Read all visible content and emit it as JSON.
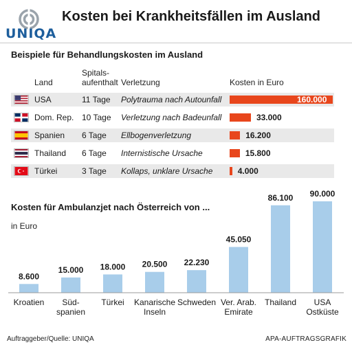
{
  "header": {
    "logo_text": "UNIQA",
    "title": "Kosten bei Krankheitsfällen im Ausland"
  },
  "colors": {
    "cost_bar": "#e8461c",
    "jet_bar": "#a8cdea",
    "row_shade": "#e9e9e9",
    "logo": "#1d5e9c"
  },
  "treatment": {
    "title": "Beispiele für Behandlungskosten im Ausland",
    "headers": {
      "country": "Land",
      "stay": "Spitals-\naufenthalt",
      "injury": "Verletzung",
      "cost": "Kosten in Euro"
    },
    "rows": [
      {
        "flag": "usa-flag",
        "country": "USA",
        "stay": "11 Tage",
        "injury": "Polytrauma nach Autounfall",
        "cost": 160000,
        "cost_label": "160.000"
      },
      {
        "flag": "dominican-republic-flag",
        "country": "Dom. Rep.",
        "stay": "10 Tage",
        "injury": "Verletzung nach Badeunfall",
        "cost": 33000,
        "cost_label": "33.000"
      },
      {
        "flag": "spain-flag",
        "country": "Spanien",
        "stay": "6 Tage",
        "injury": "Ellbogenverletzung",
        "cost": 16200,
        "cost_label": "16.200"
      },
      {
        "flag": "thailand-flag",
        "country": "Thailand",
        "stay": "6 Tage",
        "injury": "Internistische Ursache",
        "cost": 15800,
        "cost_label": "15.800"
      },
      {
        "flag": "turkey-flag",
        "country": "Türkei",
        "stay": "3 Tage",
        "injury": "Kollaps, unklare Ursache",
        "cost": 4000,
        "cost_label": "4.000"
      }
    ]
  },
  "chart_data": {
    "type": "bar",
    "title": "Kosten für Ambulanzjet nach Österreich von ...",
    "ylabel": "in Euro",
    "categories": [
      "Kroatien",
      "Süd-\nspanien",
      "Türkei",
      "Kanarische\nInseln",
      "Schweden",
      "Ver. Arab.\nEmirate",
      "Thailand",
      "USA\nOstküste"
    ],
    "values": [
      8600,
      15000,
      18000,
      20500,
      22230,
      45050,
      86100,
      90000
    ],
    "value_labels": [
      "8.600",
      "15.000",
      "18.000",
      "20.500",
      "22.230",
      "45.050",
      "86.100",
      "90.000"
    ],
    "ylim": [
      0,
      90000
    ],
    "grid": false,
    "legend": "none"
  },
  "footer": {
    "source": "Auftraggeber/Quelle: UNIQA",
    "agency": "APA-AUFTRAGSGRAFIK"
  }
}
